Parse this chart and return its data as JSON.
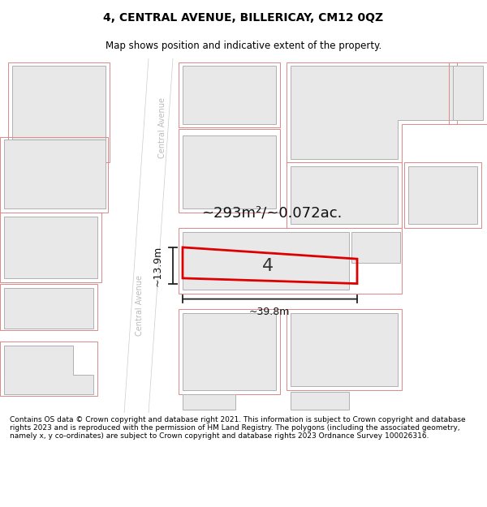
{
  "title": "4, CENTRAL AVENUE, BILLERICAY, CM12 0QZ",
  "subtitle": "Map shows position and indicative extent of the property.",
  "area_label": "~293m²/~0.072ac.",
  "property_number": "4",
  "width_label": "~39.8m",
  "height_label": "~13.9m",
  "footer": "Contains OS data © Crown copyright and database right 2021. This information is subject to Crown copyright and database rights 2023 and is reproduced with the permission of HM Land Registry. The polygons (including the associated geometry, namely x, y co-ordinates) are subject to Crown copyright and database rights 2023 Ordnance Survey 100026316.",
  "map_bg": "#f7f7f7",
  "block_fill": "#e8e8e8",
  "block_edge": "#b0b0b0",
  "pink_edge": "#e08888",
  "red_edge": "#dd0000",
  "road_fill": "#ffffff",
  "text_color": "#111111",
  "road_label_color": "#bbbbbb",
  "title_fontsize": 10,
  "subtitle_fontsize": 8.5,
  "footer_fontsize": 6.5
}
